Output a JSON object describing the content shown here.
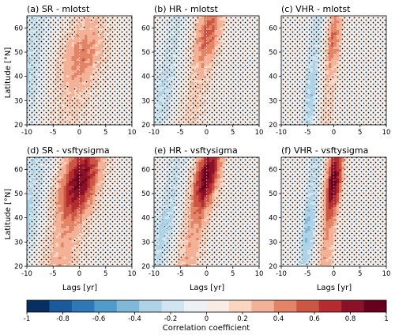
{
  "figure": {
    "ylabel": "Latitude [°N]",
    "xlabel": "Lags [yr]",
    "colorbar_label": "Correlation coefficient",
    "colormap": [
      "#053061",
      "#1a5a9c",
      "#2e79b5",
      "#4f9bcb",
      "#80b9d8",
      "#aed2e6",
      "#d0e5ef",
      "#ebf1f5",
      "#f8ece4",
      "#fad5c0",
      "#f3b197",
      "#e48467",
      "#cc5644",
      "#b42c30",
      "#8a1127",
      "#67001f"
    ],
    "colorbar_ticks": [
      "-1",
      "-0.8",
      "-0.6",
      "-0.4",
      "-0.2",
      "0",
      "0.2",
      "0.4",
      "0.6",
      "0.8",
      "1"
    ]
  },
  "chart_data": [
    {
      "type": "heatmap",
      "panel": "a",
      "title": "(a) SR - mlotst",
      "xlabel": "",
      "ylabel": "Latitude [°N]",
      "xlim": [
        -10,
        10
      ],
      "ylim": [
        20,
        65
      ],
      "x_ticks": [
        "-10",
        "-5",
        "0",
        "5",
        "10"
      ],
      "y_ticks": [
        "20",
        "30",
        "40",
        "50",
        "60"
      ],
      "peak_lag": 0.5,
      "peak_r": 0.45,
      "width": 3.0,
      "lag_slope": 0.1,
      "neg_r": -0.3,
      "max_corr_lat": 48
    },
    {
      "type": "heatmap",
      "panel": "b",
      "title": "(b) HR - mlotst",
      "xlabel": "",
      "ylabel": "",
      "xlim": [
        -10,
        10
      ],
      "ylim": [
        20,
        65
      ],
      "x_ticks": [
        "-10",
        "-5",
        "0",
        "5",
        "10"
      ],
      "y_ticks": [
        "20",
        "30",
        "40",
        "50",
        "60"
      ],
      "peak_lag": 0.3,
      "peak_r": 0.55,
      "width": 1.8,
      "lag_slope": 0.09,
      "neg_r": -0.25,
      "max_corr_lat": 58
    },
    {
      "type": "heatmap",
      "panel": "c",
      "title": "(c) VHR - mlotst",
      "xlabel": "",
      "ylabel": "",
      "xlim": [
        -10,
        10
      ],
      "ylim": [
        20,
        65
      ],
      "x_ticks": [
        "-10",
        "-5",
        "0",
        "5",
        "10"
      ],
      "y_ticks": [
        "20",
        "30",
        "40",
        "50",
        "60"
      ],
      "peak_lag": 0.0,
      "peak_r": 0.5,
      "width": 1.0,
      "lag_slope": 0.04,
      "neg_r": -0.35,
      "max_corr_lat": 55
    },
    {
      "type": "heatmap",
      "panel": "d",
      "title": "(d) SR - vsftysigma",
      "xlabel": "Lags [yr]",
      "ylabel": "Latitude [°N]",
      "xlim": [
        -10,
        10
      ],
      "ylim": [
        20,
        65
      ],
      "x_ticks": [
        "-10",
        "-5",
        "0",
        "5",
        "10"
      ],
      "y_ticks": [
        "20",
        "30",
        "40",
        "50",
        "60"
      ],
      "peak_lag": 0.0,
      "peak_r": 0.9,
      "width": 2.6,
      "lag_slope": 0.11,
      "neg_r": -0.35,
      "max_corr_lat": 55
    },
    {
      "type": "heatmap",
      "panel": "e",
      "title": "(e) HR - vsftysigma",
      "xlabel": "Lags [yr]",
      "ylabel": "",
      "xlim": [
        -10,
        10
      ],
      "ylim": [
        20,
        65
      ],
      "x_ticks": [
        "-10",
        "-5",
        "0",
        "5",
        "10"
      ],
      "y_ticks": [
        "20",
        "30",
        "40",
        "50",
        "60"
      ],
      "peak_lag": 0.0,
      "peak_r": 0.92,
      "width": 1.7,
      "lag_slope": 0.1,
      "neg_r": -0.3,
      "max_corr_lat": 57
    },
    {
      "type": "heatmap",
      "panel": "f",
      "title": "(f) VHR - vsftysigma",
      "xlabel": "Lags [yr]",
      "ylabel": "",
      "xlim": [
        -10,
        10
      ],
      "ylim": [
        20,
        65
      ],
      "x_ticks": [
        "-10",
        "-5",
        "0",
        "5",
        "10"
      ],
      "y_ticks": [
        "20",
        "30",
        "40",
        "50",
        "60"
      ],
      "peak_lag": 0.0,
      "peak_r": 0.95,
      "width": 1.1,
      "lag_slope": 0.05,
      "neg_r": -0.4,
      "max_corr_lat": 55
    }
  ]
}
